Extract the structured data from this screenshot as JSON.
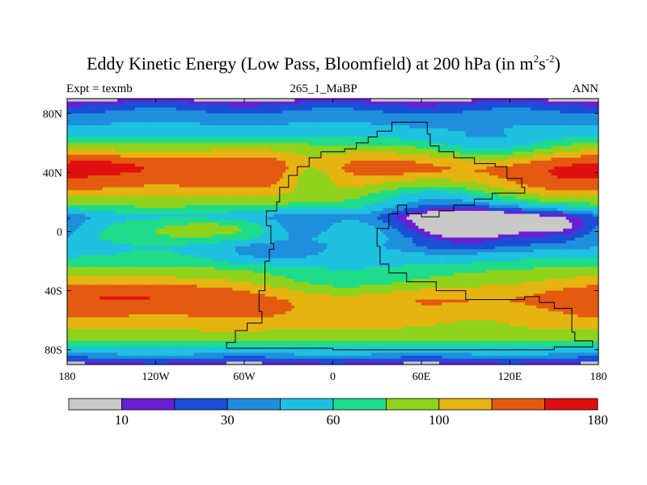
{
  "chart_data": {
    "type": "heatmap",
    "title_main": "Eddy Kinetic Energy (Low Pass, Bloomfield) at 200 hPa (in m",
    "title_sup1": "2",
    "title_mid": "s",
    "title_sup2": "-2",
    "title_end": ")",
    "left_label": "Expt = texmb",
    "center_label": "265_1_MaBP",
    "right_label": "ANN",
    "x_range": [
      -180,
      180
    ],
    "y_range": [
      -90,
      90
    ],
    "x_ticks": [
      {
        "value": -180,
        "label": "180"
      },
      {
        "value": -120,
        "label": "120W"
      },
      {
        "value": -60,
        "label": "60W"
      },
      {
        "value": 0,
        "label": "0"
      },
      {
        "value": 60,
        "label": "60E"
      },
      {
        "value": 120,
        "label": "120E"
      },
      {
        "value": 180,
        "label": "180"
      }
    ],
    "y_ticks": [
      {
        "value": 80,
        "label": "80N"
      },
      {
        "value": 40,
        "label": "40N"
      },
      {
        "value": 0,
        "label": "0"
      },
      {
        "value": -40,
        "label": "40S"
      },
      {
        "value": -80,
        "label": "80S"
      }
    ],
    "levels": [
      10,
      20,
      30,
      45,
      60,
      80,
      100,
      125,
      150,
      180
    ],
    "colors": [
      "#c8c8c8",
      "#6a1fd4",
      "#1b4fd8",
      "#1f8fdc",
      "#1ec1e0",
      "#1fdc8a",
      "#8fd21c",
      "#e6b411",
      "#e45a10",
      "#e01010"
    ],
    "colorbar_labels": [
      {
        "level_index": 0,
        "label": "10"
      },
      {
        "level_index": 2,
        "label": "30"
      },
      {
        "level_index": 4,
        "label": "60"
      },
      {
        "level_index": 6,
        "label": "100"
      },
      {
        "level_index": 9,
        "label": "180"
      }
    ],
    "zonal_profile": [
      {
        "lat": -90,
        "value": 18
      },
      {
        "lat": -87,
        "value": 38
      },
      {
        "lat": -84,
        "value": 55
      },
      {
        "lat": -80,
        "value": 70
      },
      {
        "lat": -76,
        "value": 90
      },
      {
        "lat": -72,
        "value": 110
      },
      {
        "lat": -66,
        "value": 128
      },
      {
        "lat": -60,
        "value": 145
      },
      {
        "lat": -52,
        "value": 158
      },
      {
        "lat": -46,
        "value": 163
      },
      {
        "lat": -40,
        "value": 152
      },
      {
        "lat": -34,
        "value": 132
      },
      {
        "lat": -27,
        "value": 112
      },
      {
        "lat": -21,
        "value": 92
      },
      {
        "lat": -15,
        "value": 80
      },
      {
        "lat": -10,
        "value": 75
      },
      {
        "lat": -5,
        "value": 88
      },
      {
        "lat": 0,
        "value": 90
      },
      {
        "lat": 6,
        "value": 82
      },
      {
        "lat": 10,
        "value": 70
      },
      {
        "lat": 15,
        "value": 90
      },
      {
        "lat": 20,
        "value": 112
      },
      {
        "lat": 25,
        "value": 130
      },
      {
        "lat": 30,
        "value": 150
      },
      {
        "lat": 36,
        "value": 162
      },
      {
        "lat": 42,
        "value": 170
      },
      {
        "lat": 47,
        "value": 160
      },
      {
        "lat": 52,
        "value": 138
      },
      {
        "lat": 56,
        "value": 118
      },
      {
        "lat": 60,
        "value": 100
      },
      {
        "lat": 65,
        "value": 78
      },
      {
        "lat": 70,
        "value": 66
      },
      {
        "lat": 74,
        "value": 58
      },
      {
        "lat": 78,
        "value": 52
      },
      {
        "lat": 82,
        "value": 44
      },
      {
        "lat": 86,
        "value": 32
      },
      {
        "lat": 90,
        "value": 14
      }
    ],
    "anomalies": [
      {
        "lon": 100,
        "lat": 4,
        "rlon": 62,
        "rlat": 15,
        "amp": -95
      },
      {
        "lon": 65,
        "lat": 28,
        "rlon": 50,
        "rlat": 12,
        "amp": -55
      },
      {
        "lon": -20,
        "lat": 2,
        "rlon": 28,
        "rlat": 12,
        "amp": -40
      },
      {
        "lon": -15,
        "lat": 38,
        "rlon": 18,
        "rlat": 12,
        "amp": -45
      },
      {
        "lon": -75,
        "lat": 2,
        "rlon": 38,
        "rlat": 7,
        "amp": 25
      },
      {
        "lon": 20,
        "lat": -35,
        "rlon": 80,
        "rlat": 14,
        "amp": -40
      },
      {
        "lon": -125,
        "lat": -42,
        "rlon": 50,
        "rlat": 10,
        "amp": 28
      },
      {
        "lon": -145,
        "lat": 44,
        "rlon": 35,
        "rlat": 7,
        "amp": 22
      },
      {
        "lon": 105,
        "lat": 55,
        "rlon": 55,
        "rlat": 12,
        "amp": -40
      },
      {
        "lon": 150,
        "lat": 40,
        "rlon": 45,
        "rlat": 18,
        "amp": 20
      },
      {
        "lon": 35,
        "lat": 42,
        "rlon": 10,
        "rlat": 4,
        "amp": 22
      },
      {
        "lon": -40,
        "lat": -15,
        "rlon": 40,
        "rlat": 8,
        "amp": -22
      },
      {
        "lon": 160,
        "lat": 2,
        "rlon": 25,
        "rlat": 10,
        "amp": -28
      },
      {
        "lon": 85,
        "lat": -58,
        "rlon": 60,
        "rlat": 8,
        "amp": -20
      }
    ],
    "coastline": [
      [
        [
          -52,
          -62
        ],
        [
          -48,
          -54
        ],
        [
          -50,
          -40
        ],
        [
          -46,
          -20
        ],
        [
          -43,
          -12
        ],
        [
          -40,
          -8
        ],
        [
          -42,
          4
        ],
        [
          -45,
          14
        ],
        [
          -38,
          20
        ],
        [
          -36,
          30
        ],
        [
          -30,
          38
        ],
        [
          -24,
          44
        ],
        [
          -16,
          50
        ],
        [
          -8,
          54
        ],
        [
          0,
          54
        ],
        [
          8,
          56
        ],
        [
          16,
          60
        ],
        [
          24,
          64
        ],
        [
          30,
          68
        ],
        [
          40,
          74
        ],
        [
          56,
          74
        ],
        [
          64,
          66
        ],
        [
          66,
          58
        ],
        [
          72,
          54
        ],
        [
          82,
          50
        ],
        [
          96,
          46
        ],
        [
          110,
          44
        ],
        [
          118,
          36
        ],
        [
          128,
          30
        ],
        [
          130,
          26
        ],
        [
          118,
          26
        ],
        [
          108,
          22
        ],
        [
          96,
          18
        ],
        [
          82,
          14
        ],
        [
          72,
          10
        ],
        [
          60,
          12
        ],
        [
          50,
          18
        ],
        [
          44,
          12
        ],
        [
          38,
          2
        ],
        [
          30,
          -10
        ],
        [
          32,
          -22
        ],
        [
          38,
          -28
        ],
        [
          50,
          -34
        ],
        [
          70,
          -40
        ],
        [
          90,
          -46
        ],
        [
          112,
          -46
        ],
        [
          130,
          -44
        ],
        [
          140,
          -48
        ],
        [
          150,
          -52
        ],
        [
          162,
          -68
        ],
        [
          164,
          -74
        ],
        [
          176,
          -78
        ],
        [
          150,
          -80
        ],
        [
          100,
          -80
        ],
        [
          50,
          -80
        ],
        [
          0,
          -79
        ],
        [
          -50,
          -79
        ],
        [
          -72,
          -75
        ],
        [
          -66,
          -67
        ],
        [
          -58,
          -62
        ],
        [
          -52,
          -62
        ]
      ]
    ]
  }
}
